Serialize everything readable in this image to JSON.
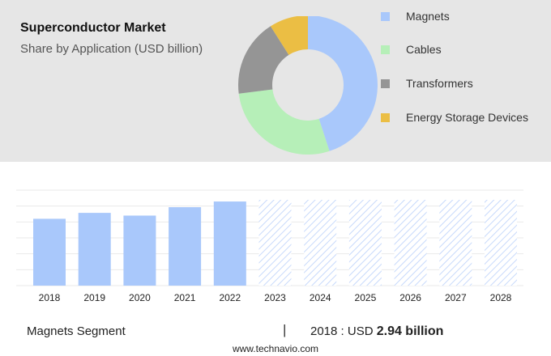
{
  "header": {
    "title": "Superconductor Market",
    "subtitle": "Share by Application (USD billion)"
  },
  "chart_data": [
    {
      "type": "pie",
      "variant": "donut",
      "slices": [
        {
          "label": "Magnets",
          "value": 45,
          "color": "#a9c8fb"
        },
        {
          "label": "Cables",
          "value": 28,
          "color": "#b6efb8"
        },
        {
          "label": "Transformers",
          "value": 18,
          "color": "#959595"
        },
        {
          "label": "Energy Storage Devices",
          "value": 9,
          "color": "#ebbe44"
        }
      ],
      "legend": "right"
    },
    {
      "type": "bar",
      "categories": [
        "2018",
        "2019",
        "2020",
        "2021",
        "2022",
        "2023",
        "2024",
        "2025",
        "2026",
        "2027",
        "2028"
      ],
      "values": [
        2.94,
        3.2,
        3.08,
        3.45,
        3.7,
        null,
        null,
        null,
        null,
        null,
        null
      ],
      "forecast": [
        false,
        false,
        false,
        false,
        false,
        true,
        true,
        true,
        true,
        true,
        true
      ],
      "bar_color": "#a9c8fb",
      "forecast_color": "#c7d9fb",
      "ylim": [
        0,
        4.2
      ],
      "grid": true
    }
  ],
  "footer": {
    "segment_label": "Magnets Segment",
    "divider": "|",
    "year_label": "2018 : USD",
    "value_label": "2.94 billion"
  },
  "source": "www.technavio.com"
}
